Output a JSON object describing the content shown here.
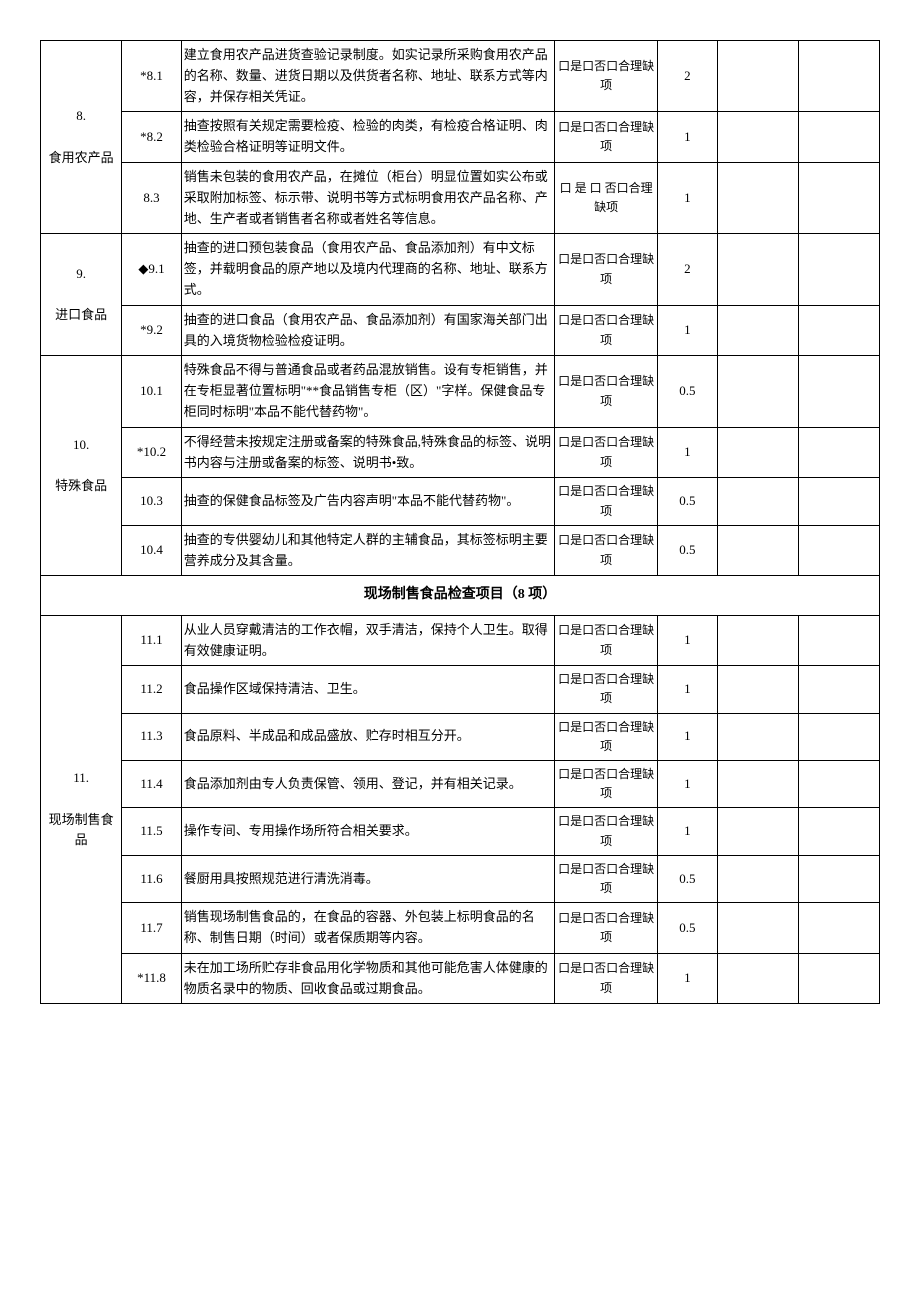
{
  "sections": {
    "s8": {
      "category_num": "8.",
      "category_name": "食用农产品",
      "rows": [
        {
          "num": "*8.1",
          "desc": "建立食用农产品进货查验记录制度。如实记录所采购食用农产品的名称、数量、进货日期以及供货者名称、地址、联系方式等内容，并保存相关凭证。",
          "check": "口是口否口合理缺项",
          "score": "2"
        },
        {
          "num": "*8.2",
          "desc": "抽查按照有关规定需要检疫、检验的肉类，有检疫合格证明、肉类检验合格证明等证明文件。",
          "check": "口是口否口合理缺项",
          "score": "1"
        },
        {
          "num": "8.3",
          "desc": "销售未包装的食用农产品，在摊位（柜台）明显位置如实公布或采取附加标签、标示带、说明书等方式标明食用农产品名称、产地、生产者或者销售者名称或者姓名等信息。",
          "check": "口 是 口 否口合理缺项",
          "score": "1"
        }
      ]
    },
    "s9": {
      "category_num": "9.",
      "category_name": "进口食品",
      "rows": [
        {
          "num": "◆9.1",
          "desc": "抽查的进口预包装食品（食用农产品、食品添加剂）有中文标签，并载明食品的原产地以及境内代理商的名称、地址、联系方式。",
          "check": "口是口否口合理缺项",
          "score": "2"
        },
        {
          "num": "*9.2",
          "desc": "抽查的进口食品（食用农产品、食品添加剂）有国家海关部门出具的入境货物检验检疫证明。",
          "check": "口是口否口合理缺项",
          "score": "1"
        }
      ]
    },
    "s10": {
      "category_num": "10.",
      "category_name": "特殊食品",
      "rows": [
        {
          "num": "10.1",
          "desc": "特殊食品不得与普通食品或者药品混放销售。设有专柜销售，并在专柜显著位置标明\"**食品销售专柜（区）\"字样。保健食品专柜同时标明\"本品不能代替药物\"。",
          "check": "口是口否口合理缺项",
          "score": "0.5"
        },
        {
          "num": "*10.2",
          "desc": "不得经营未按规定注册或备案的特殊食品,特殊食品的标签、说明书内容与注册或备案的标签、说明书•致。",
          "check": "口是口否口合理缺项",
          "score": "1"
        },
        {
          "num": "10.3",
          "desc": "抽查的保健食品标签及广告内容声明\"本品不能代替药物\"。",
          "check": "口是口否口合理缺项",
          "score": "0.5"
        },
        {
          "num": "10.4",
          "desc": "抽查的专供婴幼儿和其他特定人群的主辅食品，其标签标明主要营养成分及其含量。",
          "check": "口是口否口合理缺项",
          "score": "0.5"
        }
      ]
    },
    "header11": "现场制售食品检查项目（8 项）",
    "s11": {
      "category_num": "11.",
      "category_name": "现场制售食品",
      "rows": [
        {
          "num": "11.1",
          "desc": "从业人员穿戴清洁的工作衣帽，双手清洁，保持个人卫生。取得有效健康证明。",
          "check": "口是口否口合理缺项",
          "score": "1"
        },
        {
          "num": "11.2",
          "desc": "食品操作区域保持清洁、卫生。",
          "check": "口是口否口合理缺项",
          "score": "1"
        },
        {
          "num": "11.3",
          "desc": "食品原料、半成品和成品盛放、贮存时相互分开。",
          "check": "口是口否口合理缺项",
          "score": "1"
        },
        {
          "num": "11.4",
          "desc": "食品添加剂由专人负责保管、领用、登记，并有相关记录。",
          "check": "口是口否口合理缺项",
          "score": "1"
        },
        {
          "num": "11.5",
          "desc": "操作专间、专用操作场所符合相关要求。",
          "check": "口是口否口合理缺项",
          "score": "1"
        },
        {
          "num": "11.6",
          "desc": "餐厨用具按照规范进行清洗消毒。",
          "check": "口是口否口合理缺项",
          "score": "0.5"
        },
        {
          "num": "11.7",
          "desc": "销售现场制售食品的，在食品的容器、外包装上标明食品的名称、制售日期（时间）或者保质期等内容。",
          "check": "口是口否口合理缺项",
          "score": "0.5"
        },
        {
          "num": "*11.8",
          "desc": "未在加工场所贮存非食品用化学物质和其他可能危害人体健康的物质名录中的物质、回收食品或过期食品。",
          "check": "口是口否口合理缺项",
          "score": "1"
        }
      ]
    }
  }
}
